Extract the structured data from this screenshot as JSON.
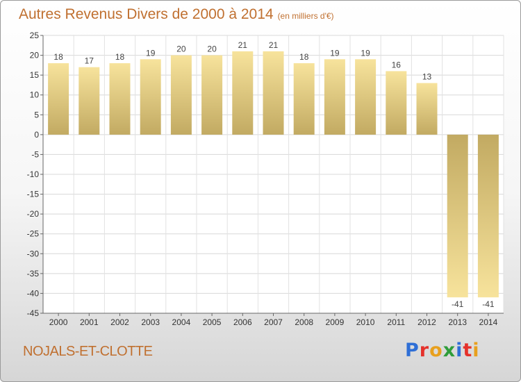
{
  "title": "Autres Revenus Divers de 2000 à 2014",
  "unit": "(en milliers d'€)",
  "commune": "NOJALS-ET-CLOTTE",
  "logo": {
    "letters": [
      "P",
      "r",
      "o",
      "x",
      "i",
      "t",
      "i"
    ],
    "colors": [
      "#2f6fd6",
      "#e5312b",
      "#e8a01e",
      "#2f9d3a",
      "#2f6fd6",
      "#e5312b",
      "#e8a01e"
    ]
  },
  "chart_data": {
    "type": "bar",
    "title": "Autres Revenus Divers de 2000 à 2014",
    "subtitle": "(en milliers d'€)",
    "categories": [
      "2000",
      "2001",
      "2002",
      "2003",
      "2004",
      "2005",
      "2006",
      "2007",
      "2008",
      "2009",
      "2010",
      "2011",
      "2012",
      "2013",
      "2014"
    ],
    "values": [
      18,
      17,
      18,
      19,
      20,
      20,
      21,
      21,
      18,
      19,
      19,
      16,
      13,
      -41,
      -41
    ],
    "ylim": [
      -45,
      25
    ],
    "yticks": [
      25,
      20,
      15,
      10,
      5,
      0,
      -5,
      -10,
      -15,
      -20,
      -25,
      -30,
      -35,
      -40,
      -45
    ],
    "grid": true,
    "bar_color_dark": "#c2aa62",
    "bar_color_light": "#f7e39c"
  }
}
